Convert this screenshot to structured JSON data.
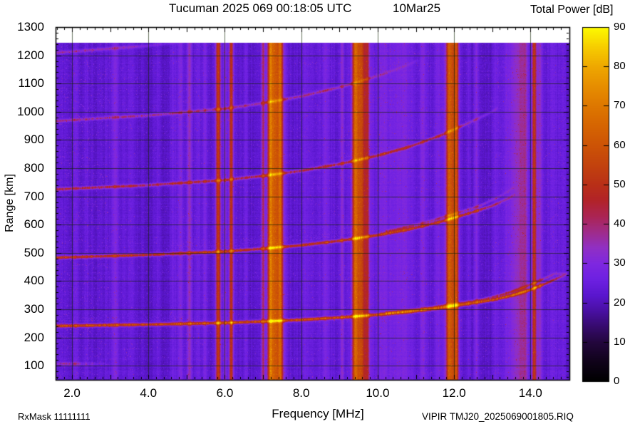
{
  "header": {
    "title": "Tucuman 2025 069 00:18:05 UTC",
    "date": "10Mar25",
    "colorbar_title": "Total Power [dB]"
  },
  "footer": {
    "rx_mask": "RxMask 11111111",
    "x_axis_label": "Frequency [MHz]",
    "file_id": "VIPIR  TMJ20_2025069001805.RIQ"
  },
  "y_axis_label": "Range [km]",
  "chart_data": {
    "type": "heatmap",
    "title": "Tucuman 2025 069 00:18:05 UTC   10Mar25",
    "xlabel": "Frequency [MHz]",
    "ylabel": "Range [km]",
    "zlabel": "Total Power [dB]",
    "xlim": [
      1.57,
      15.02
    ],
    "ylim": [
      50,
      1300
    ],
    "zlim": [
      0,
      90
    ],
    "grid_on": true,
    "x_major_ticks": [
      2,
      4,
      6,
      8,
      10,
      12,
      14
    ],
    "x_tick_labels": [
      "2.0",
      "4.0",
      "6.0",
      "8.0",
      "10.0",
      "12.0",
      "14.0"
    ],
    "x_minor_step": 0.2,
    "y_tick_values": [
      100,
      200,
      300,
      400,
      500,
      600,
      700,
      800,
      900,
      1000,
      1100,
      1200,
      1300
    ],
    "y_major_step": 100,
    "y_minor_step": 20,
    "colorbar_tick_values": [
      0,
      10,
      20,
      30,
      40,
      50,
      60,
      70,
      80,
      90
    ],
    "data_top_km": 1245,
    "background_db": 22.2,
    "grid_color": "rgba(18,34,2,0.62)",
    "colormap": [
      [
        0,
        "#000000"
      ],
      [
        5,
        "#10031a"
      ],
      [
        10,
        "#24073e"
      ],
      [
        14,
        "#370b6e"
      ],
      [
        18,
        "#4a10a4"
      ],
      [
        22,
        "#5b17cf"
      ],
      [
        26,
        "#6e21e2"
      ],
      [
        30,
        "#7f28e0"
      ],
      [
        34,
        "#9130c4"
      ],
      [
        38,
        "#a02c8a"
      ],
      [
        42,
        "#ab2554"
      ],
      [
        46,
        "#b22329"
      ],
      [
        50,
        "#b93018"
      ],
      [
        55,
        "#c3430e"
      ],
      [
        60,
        "#cd5406"
      ],
      [
        65,
        "#d66502"
      ],
      [
        70,
        "#de7800"
      ],
      [
        75,
        "#e78e00"
      ],
      [
        80,
        "#efa800"
      ],
      [
        85,
        "#f7ce00"
      ],
      [
        90,
        "#fdfb00"
      ]
    ],
    "echo_trace_hf_km": [
      [
        1.57,
        242
      ],
      [
        3,
        245
      ],
      [
        4,
        247
      ],
      [
        5,
        250
      ],
      [
        6,
        253
      ],
      [
        7,
        258
      ],
      [
        8,
        264
      ],
      [
        9,
        272
      ],
      [
        10,
        282
      ],
      [
        10.8,
        292
      ],
      [
        11.6,
        305
      ],
      [
        12.4,
        321
      ],
      [
        13,
        334
      ],
      [
        13.5,
        350
      ],
      [
        14,
        371
      ],
      [
        14.4,
        393
      ],
      [
        14.7,
        411
      ],
      [
        14.95,
        427
      ]
    ],
    "hops": [
      {
        "n": 1,
        "f_max": 14.95,
        "fade_from": 14.2,
        "peak_db": 57,
        "fuzz": {
          "f1": 1.6,
          "f2": 4.9,
          "amp": 7
        }
      },
      {
        "n": 2,
        "f_max": 13.6,
        "fade_from": 12.6,
        "peak_db": 50,
        "fuzz": {
          "f1": 4.6,
          "f2": 10.0,
          "amp": 6.5
        }
      },
      {
        "n": 3,
        "f_max": 13.15,
        "fade_from": 11.6,
        "peak_db": 44,
        "fuzz": {
          "f1": 9.0,
          "f2": 12.8,
          "amp": 4
        }
      },
      {
        "n": 4,
        "f_max": 11.05,
        "fade_from": 8.8,
        "peak_db": 38,
        "fuzz": null
      },
      {
        "n": 5,
        "f_max": 4.9,
        "fade_from": 3.2,
        "peak_db": 35,
        "fuzz": null
      }
    ],
    "x_mode_offset_mhz": 0.33,
    "e_layer_echo": {
      "range_km": 108,
      "f_start": 1.57,
      "f_end": 3.1,
      "peak_db": 38
    },
    "rfi_stripes": [
      {
        "f": 2.1,
        "w": 0.05,
        "s": 0.15
      },
      {
        "f": 2.36,
        "w": 0.04,
        "s": 0.1
      },
      {
        "f": 3.12,
        "w": 0.06,
        "s": 0.2
      },
      {
        "f": 3.56,
        "w": 0.05,
        "s": 0.1
      },
      {
        "f": 4.26,
        "w": 0.05,
        "s": 0.13
      },
      {
        "f": 4.63,
        "w": 0.08,
        "s": 0.16
      },
      {
        "f": 4.83,
        "w": 0.06,
        "s": 0.25
      },
      {
        "f": 5.07,
        "w": 0.05,
        "s": 0.4
      },
      {
        "f": 5.3,
        "w": 0.05,
        "s": 0.13
      },
      {
        "f": 5.47,
        "w": 0.04,
        "s": 0.2
      },
      {
        "f": 5.82,
        "w": 0.045,
        "s": 0.92
      },
      {
        "f": 6.0,
        "w": 0.03,
        "s": 0.3
      },
      {
        "f": 6.16,
        "w": 0.035,
        "s": 0.88
      },
      {
        "f": 6.53,
        "w": 0.04,
        "s": 0.15
      },
      {
        "f": 6.99,
        "w": 0.035,
        "s": 0.5
      },
      {
        "f": 7.18,
        "w": 0.04,
        "s": 0.85
      },
      {
        "f": 7.31,
        "w": 0.1,
        "s": 0.95
      },
      {
        "f": 7.45,
        "w": 0.04,
        "s": 0.72
      },
      {
        "f": 7.31,
        "w": 0.2,
        "s": 0.3
      },
      {
        "f": 8.1,
        "w": 0.05,
        "s": 0.12
      },
      {
        "f": 8.62,
        "w": 0.05,
        "s": 0.18
      },
      {
        "f": 9.06,
        "w": 0.04,
        "s": 0.25
      },
      {
        "f": 9.4,
        "w": 0.05,
        "s": 0.92
      },
      {
        "f": 9.55,
        "w": 0.09,
        "s": 0.8
      },
      {
        "f": 9.72,
        "w": 0.04,
        "s": 0.45
      },
      {
        "f": 9.55,
        "w": 0.2,
        "s": 0.25
      },
      {
        "f": 10.15,
        "w": 0.14,
        "s": 0.2
      },
      {
        "f": 10.63,
        "w": 0.17,
        "s": 0.18
      },
      {
        "f": 11.18,
        "w": 0.05,
        "s": 0.22
      },
      {
        "f": 11.56,
        "w": 0.05,
        "s": 0.15
      },
      {
        "f": 11.85,
        "w": 0.05,
        "s": 0.88
      },
      {
        "f": 11.97,
        "w": 0.06,
        "s": 0.72
      },
      {
        "f": 12.06,
        "w": 0.035,
        "s": 0.65
      },
      {
        "f": 11.95,
        "w": 0.14,
        "s": 0.25
      },
      {
        "f": 12.37,
        "w": 0.04,
        "s": 0.16
      },
      {
        "f": 12.57,
        "w": 0.04,
        "s": 0.25
      },
      {
        "f": 13.1,
        "w": 0.05,
        "s": 0.12
      },
      {
        "f": 13.5,
        "w": 0.18,
        "s": 0.2
      },
      {
        "f": 13.73,
        "w": 0.1,
        "s": 0.28
      },
      {
        "f": 13.86,
        "w": 0.05,
        "s": 0.26
      },
      {
        "f": 14.09,
        "w": 0.04,
        "s": 0.88
      },
      {
        "f": 14.23,
        "w": 0.05,
        "s": 0.35
      },
      {
        "f": 14.6,
        "w": 0.1,
        "s": 0.12
      },
      {
        "f": 14.85,
        "w": 0.06,
        "s": 0.1
      }
    ],
    "stripe_db_scale": 34
  }
}
